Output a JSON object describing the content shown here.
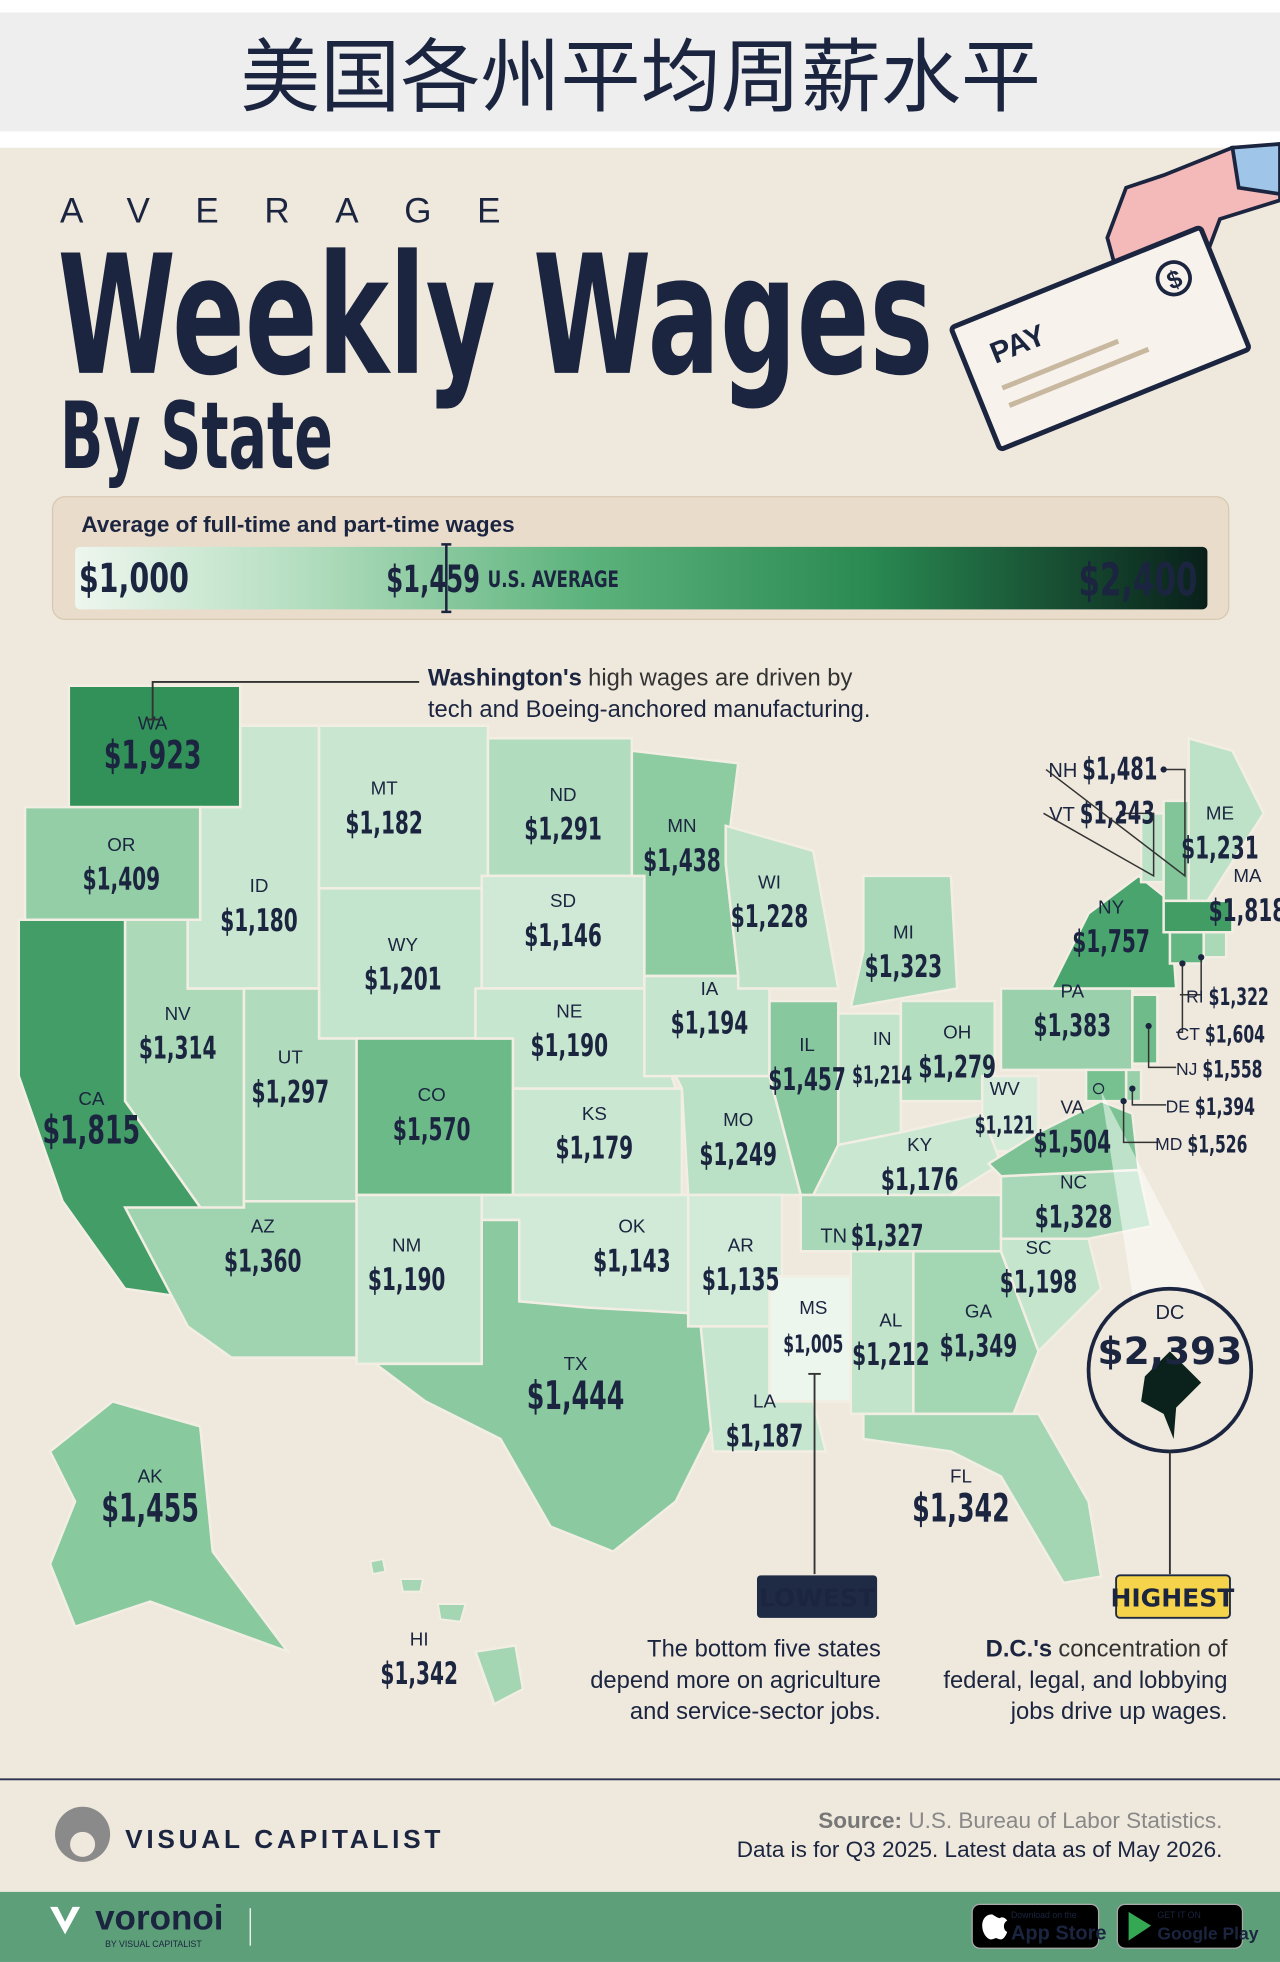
{
  "banner_title": "美国各州平均周薪水平",
  "header": {
    "kicker": "AVERAGE",
    "title": "Weekly Wages",
    "subtitle": "By State"
  },
  "illustration": {
    "check_text": "PAY",
    "icon": "$"
  },
  "legend": {
    "caption": "Average of full-time and part-time wages",
    "min": {
      "value": 1000,
      "label": "$1,000"
    },
    "max": {
      "value": 2400,
      "label": "$2,400"
    },
    "average": {
      "value": 1459,
      "label": "$1,459"
    },
    "average_caption": "U.S. AVERAGE"
  },
  "states": [
    {
      "code": "WA",
      "value": 1923,
      "label": "$1,923"
    },
    {
      "code": "OR",
      "value": 1409,
      "label": "$1,409"
    },
    {
      "code": "CA",
      "value": 1815,
      "label": "$1,815"
    },
    {
      "code": "NV",
      "value": 1314,
      "label": "$1,314"
    },
    {
      "code": "ID",
      "value": 1180,
      "label": "$1,180"
    },
    {
      "code": "MT",
      "value": 1182,
      "label": "$1,182"
    },
    {
      "code": "WY",
      "value": 1201,
      "label": "$1,201"
    },
    {
      "code": "UT",
      "value": 1297,
      "label": "$1,297"
    },
    {
      "code": "CO",
      "value": 1570,
      "label": "$1,570"
    },
    {
      "code": "AZ",
      "value": 1360,
      "label": "$1,360"
    },
    {
      "code": "NM",
      "value": 1190,
      "label": "$1,190"
    },
    {
      "code": "ND",
      "value": 1291,
      "label": "$1,291"
    },
    {
      "code": "SD",
      "value": 1146,
      "label": "$1,146"
    },
    {
      "code": "NE",
      "value": 1190,
      "label": "$1,190"
    },
    {
      "code": "KS",
      "value": 1179,
      "label": "$1,179"
    },
    {
      "code": "OK",
      "value": 1143,
      "label": "$1,143"
    },
    {
      "code": "TX",
      "value": 1444,
      "label": "$1,444"
    },
    {
      "code": "MN",
      "value": 1438,
      "label": "$1,438"
    },
    {
      "code": "IA",
      "value": 1194,
      "label": "$1,194"
    },
    {
      "code": "MO",
      "value": 1249,
      "label": "$1,249"
    },
    {
      "code": "AR",
      "value": 1135,
      "label": "$1,135"
    },
    {
      "code": "LA",
      "value": 1187,
      "label": "$1,187"
    },
    {
      "code": "MS",
      "value": 1005,
      "label": "$1,005"
    },
    {
      "code": "WI",
      "value": 1228,
      "label": "$1,228"
    },
    {
      "code": "IL",
      "value": 1457,
      "label": "$1,457"
    },
    {
      "code": "MI",
      "value": 1323,
      "label": "$1,323"
    },
    {
      "code": "IN",
      "value": 1214,
      "label": "$1,214"
    },
    {
      "code": "OH",
      "value": 1279,
      "label": "$1,279"
    },
    {
      "code": "WV",
      "value": 1121,
      "label": "$1,121"
    },
    {
      "code": "KY",
      "value": 1176,
      "label": "$1,176"
    },
    {
      "code": "TN",
      "value": 1327,
      "label": "$1,327"
    },
    {
      "code": "AL",
      "value": 1212,
      "label": "$1,212"
    },
    {
      "code": "GA",
      "value": 1349,
      "label": "$1,349"
    },
    {
      "code": "FL",
      "value": 1342,
      "label": "$1,342"
    },
    {
      "code": "SC",
      "value": 1198,
      "label": "$1,198"
    },
    {
      "code": "NC",
      "value": 1328,
      "label": "$1,328"
    },
    {
      "code": "VA",
      "value": 1504,
      "label": "$1,504"
    },
    {
      "code": "PA",
      "value": 1383,
      "label": "$1,383"
    },
    {
      "code": "NY",
      "value": 1757,
      "label": "$1,757"
    },
    {
      "code": "VT",
      "value": 1243,
      "label": "$1,243"
    },
    {
      "code": "NH",
      "value": 1481,
      "label": "$1,481"
    },
    {
      "code": "ME",
      "value": 1231,
      "label": "$1,231"
    },
    {
      "code": "MA",
      "value": 1818,
      "label": "$1,818"
    },
    {
      "code": "RI",
      "value": 1322,
      "label": "$1,322"
    },
    {
      "code": "CT",
      "value": 1604,
      "label": "$1,604"
    },
    {
      "code": "NJ",
      "value": 1558,
      "label": "$1,558"
    },
    {
      "code": "DE",
      "value": 1394,
      "label": "$1,394"
    },
    {
      "code": "MD",
      "value": 1526,
      "label": "$1,526"
    },
    {
      "code": "DC",
      "value": 2393,
      "label": "$2,393"
    },
    {
      "code": "AK",
      "value": 1455,
      "label": "$1,455"
    },
    {
      "code": "HI",
      "value": 1342,
      "label": "$1,342"
    }
  ],
  "annotations": {
    "washington": {
      "bold": "Washington's",
      "lines": [
        "high wages are driven by",
        "tech and Boeing-anchored manufacturing."
      ]
    },
    "lowest": {
      "badge": "LOWEST",
      "lines": [
        "The bottom five states",
        "depend more on agriculture",
        "and service-sector jobs."
      ]
    },
    "highest": {
      "badge": "HIGHEST",
      "bold": "D.C.'s",
      "lines": [
        "concentration of",
        "federal, legal, and lobbying",
        "jobs drive up wages."
      ]
    }
  },
  "footer": {
    "brand": "VISUAL CAPITALIST",
    "source_label": "Source:",
    "source": "U.S. Bureau of Labor Statistics.",
    "note": "Data is for Q3 2025. Latest data as of May 2026."
  },
  "app_bar": {
    "brand": "voronoi",
    "brand_sub": "BY VISUAL CAPITALIST",
    "app_store_small": "Download on the",
    "app_store": "App Store",
    "google_small": "GET IT ON",
    "google": "Google Play"
  }
}
